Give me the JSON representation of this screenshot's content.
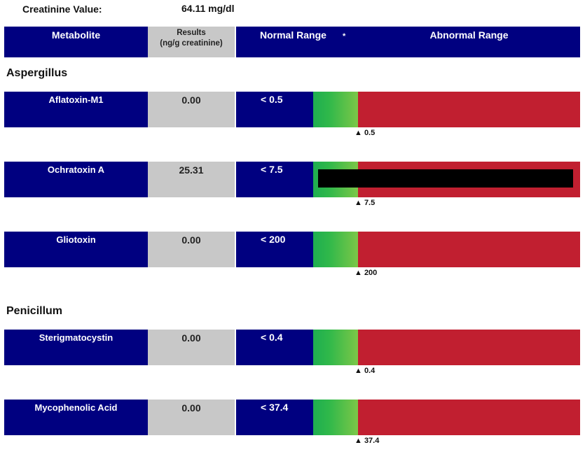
{
  "creatinine": {
    "label": "Creatinine Value:",
    "value": "64.11 mg/dl"
  },
  "header": {
    "metabolite": "Metabolite",
    "results_line1": "Results",
    "results_line2": "(ng/g creatinine)",
    "normal_range": "Normal Range",
    "star": "*",
    "abnormal_range": "Abnormal Range"
  },
  "sections": [
    {
      "title": "Aspergillus",
      "rows": [
        {
          "name": "Aflatoxin-M1",
          "result": "0.00",
          "normal": "< 0.5",
          "marker": "▲ 0.5",
          "redacted": false
        },
        {
          "name": "Ochratoxin A",
          "result": "25.31",
          "normal": "< 7.5",
          "marker": "▲ 7.5",
          "redacted": true
        },
        {
          "name": "Gliotoxin",
          "result": "0.00",
          "normal": "< 200",
          "marker": "▲ 200",
          "redacted": false
        }
      ]
    },
    {
      "title": "Penicillum",
      "rows": [
        {
          "name": "Sterigmatocystin",
          "result": "0.00",
          "normal": "< 0.4",
          "marker": "▲ 0.4",
          "redacted": false
        },
        {
          "name": "Mycophenolic Acid",
          "result": "0.00",
          "normal": "< 37.4",
          "marker": "▲ 37.4",
          "redacted": false
        }
      ]
    }
  ],
  "colors": {
    "header_navy": "#000080",
    "result_gray": "#c8c8c8",
    "abnormal_red": "#c11f30",
    "normal_green": "#2fb84a"
  }
}
